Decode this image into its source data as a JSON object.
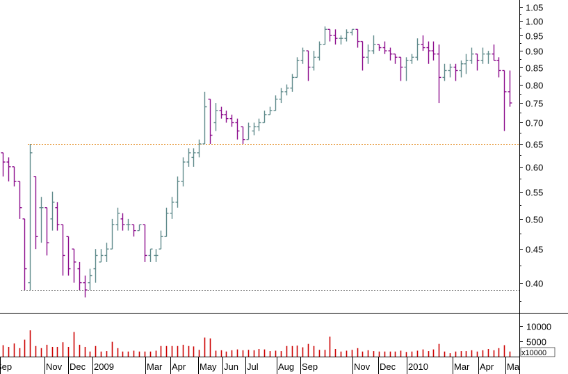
{
  "chart_data": {
    "type": "ohlc",
    "price_axis": {
      "ticks": [
        "1.05",
        "1.00",
        "0.95",
        "0.90",
        "0.85",
        "0.80",
        "0.75",
        "0.70",
        "0.65",
        "0.60",
        "0.55",
        "0.50",
        "0.45",
        "0.40"
      ],
      "tick_values": [
        1.05,
        1.0,
        0.95,
        0.9,
        0.85,
        0.8,
        0.75,
        0.7,
        0.65,
        0.6,
        0.55,
        0.5,
        0.45,
        0.4
      ],
      "scale": "log",
      "range": [
        0.36,
        1.075
      ]
    },
    "volume_axis": {
      "ticks": [
        "10000",
        "5000"
      ],
      "tick_values": [
        10000,
        5000
      ],
      "multiplier_label": "x10000",
      "range": [
        0,
        14000
      ]
    },
    "x_axis": {
      "labels": [
        "Sep",
        "Nov",
        "Dec",
        "2009",
        "Mar",
        "Apr",
        "May",
        "Jun",
        "Jul",
        "Aug",
        "Sep",
        "Nov",
        "Dec",
        "2010",
        "Mar",
        "Apr",
        "Ma"
      ]
    },
    "reference_lines": [
      {
        "value": 0.65,
        "color": "#e07b00"
      },
      {
        "value": 0.39,
        "color": "#555555"
      }
    ],
    "colors": {
      "up": "#5f8a8b",
      "down": "#8b0a8b",
      "volume": "#cc0000",
      "grid": "#000000"
    },
    "bars": [
      [
        0.63,
        0.63,
        0.58,
        0.61
      ],
      [
        0.61,
        0.62,
        0.57,
        0.6
      ],
      [
        0.6,
        0.6,
        0.56,
        0.57
      ],
      [
        0.57,
        0.57,
        0.5,
        0.52
      ],
      [
        0.5,
        0.5,
        0.39,
        0.42
      ],
      [
        0.4,
        0.65,
        0.39,
        0.63
      ],
      [
        0.58,
        0.58,
        0.45,
        0.47
      ],
      [
        0.52,
        0.54,
        0.46,
        0.52
      ],
      [
        0.52,
        0.52,
        0.44,
        0.46
      ],
      [
        0.5,
        0.55,
        0.48,
        0.53
      ],
      [
        0.52,
        0.53,
        0.48,
        0.49
      ],
      [
        0.49,
        0.49,
        0.41,
        0.44
      ],
      [
        0.47,
        0.47,
        0.41,
        0.42
      ],
      [
        0.45,
        0.45,
        0.4,
        0.43
      ],
      [
        0.42,
        0.43,
        0.39,
        0.4
      ],
      [
        0.4,
        0.41,
        0.38,
        0.39
      ],
      [
        0.4,
        0.42,
        0.39,
        0.41
      ],
      [
        0.42,
        0.45,
        0.4,
        0.44
      ],
      [
        0.43,
        0.45,
        0.43,
        0.44
      ],
      [
        0.44,
        0.46,
        0.43,
        0.45
      ],
      [
        0.45,
        0.5,
        0.45,
        0.49
      ],
      [
        0.49,
        0.52,
        0.48,
        0.51
      ],
      [
        0.5,
        0.51,
        0.48,
        0.49
      ],
      [
        0.49,
        0.5,
        0.48,
        0.49
      ],
      [
        0.49,
        0.49,
        0.47,
        0.48
      ],
      [
        0.48,
        0.49,
        0.48,
        0.49
      ],
      [
        0.49,
        0.49,
        0.43,
        0.44
      ],
      [
        0.44,
        0.45,
        0.43,
        0.45
      ],
      [
        0.44,
        0.45,
        0.43,
        0.44
      ],
      [
        0.45,
        0.48,
        0.45,
        0.47
      ],
      [
        0.47,
        0.52,
        0.47,
        0.51
      ],
      [
        0.51,
        0.54,
        0.5,
        0.53
      ],
      [
        0.53,
        0.58,
        0.52,
        0.57
      ],
      [
        0.57,
        0.62,
        0.56,
        0.61
      ],
      [
        0.61,
        0.64,
        0.6,
        0.63
      ],
      [
        0.62,
        0.64,
        0.6,
        0.63
      ],
      [
        0.63,
        0.66,
        0.62,
        0.65
      ],
      [
        0.65,
        0.78,
        0.65,
        0.74
      ],
      [
        0.76,
        0.76,
        0.65,
        0.67
      ],
      [
        0.7,
        0.75,
        0.68,
        0.73
      ],
      [
        0.73,
        0.74,
        0.71,
        0.72
      ],
      [
        0.72,
        0.73,
        0.7,
        0.71
      ],
      [
        0.71,
        0.72,
        0.69,
        0.7
      ],
      [
        0.7,
        0.71,
        0.66,
        0.68
      ],
      [
        0.69,
        0.69,
        0.65,
        0.66
      ],
      [
        0.66,
        0.7,
        0.66,
        0.69
      ],
      [
        0.68,
        0.7,
        0.67,
        0.69
      ],
      [
        0.69,
        0.71,
        0.68,
        0.7
      ],
      [
        0.7,
        0.73,
        0.7,
        0.72
      ],
      [
        0.72,
        0.74,
        0.72,
        0.73
      ],
      [
        0.73,
        0.77,
        0.73,
        0.76
      ],
      [
        0.76,
        0.79,
        0.75,
        0.78
      ],
      [
        0.78,
        0.8,
        0.77,
        0.79
      ],
      [
        0.79,
        0.83,
        0.78,
        0.82
      ],
      [
        0.82,
        0.88,
        0.82,
        0.87
      ],
      [
        0.87,
        0.91,
        0.86,
        0.9
      ],
      [
        0.9,
        0.9,
        0.81,
        0.85
      ],
      [
        0.85,
        0.9,
        0.84,
        0.88
      ],
      [
        0.88,
        0.93,
        0.87,
        0.92
      ],
      [
        0.92,
        0.98,
        0.92,
        0.97
      ],
      [
        0.97,
        0.97,
        0.93,
        0.95
      ],
      [
        0.95,
        0.97,
        0.92,
        0.94
      ],
      [
        0.94,
        0.95,
        0.92,
        0.94
      ],
      [
        0.94,
        0.97,
        0.93,
        0.96
      ],
      [
        0.96,
        0.97,
        0.95,
        0.97
      ],
      [
        0.97,
        0.97,
        0.91,
        0.93
      ],
      [
        0.93,
        0.93,
        0.84,
        0.88
      ],
      [
        0.88,
        0.92,
        0.86,
        0.9
      ],
      [
        0.9,
        0.95,
        0.89,
        0.92
      ],
      [
        0.92,
        0.92,
        0.9,
        0.91
      ],
      [
        0.91,
        0.93,
        0.89,
        0.9
      ],
      [
        0.9,
        0.91,
        0.87,
        0.89
      ],
      [
        0.89,
        0.89,
        0.86,
        0.88
      ],
      [
        0.88,
        0.88,
        0.81,
        0.85
      ],
      [
        0.85,
        0.88,
        0.81,
        0.87
      ],
      [
        0.87,
        0.89,
        0.86,
        0.88
      ],
      [
        0.88,
        0.94,
        0.87,
        0.92
      ],
      [
        0.92,
        0.95,
        0.9,
        0.91
      ],
      [
        0.91,
        0.93,
        0.86,
        0.9
      ],
      [
        0.9,
        0.93,
        0.87,
        0.89
      ],
      [
        0.89,
        0.92,
        0.75,
        0.82
      ],
      [
        0.82,
        0.86,
        0.81,
        0.84
      ],
      [
        0.84,
        0.86,
        0.82,
        0.85
      ],
      [
        0.85,
        0.86,
        0.81,
        0.84
      ],
      [
        0.84,
        0.87,
        0.82,
        0.86
      ],
      [
        0.86,
        0.89,
        0.83,
        0.87
      ],
      [
        0.87,
        0.91,
        0.86,
        0.89
      ],
      [
        0.89,
        0.89,
        0.84,
        0.87
      ],
      [
        0.87,
        0.91,
        0.86,
        0.89
      ],
      [
        0.89,
        0.9,
        0.86,
        0.89
      ],
      [
        0.89,
        0.92,
        0.87,
        0.87
      ],
      [
        0.87,
        0.88,
        0.82,
        0.84
      ],
      [
        0.84,
        0.84,
        0.68,
        0.78
      ],
      [
        0.78,
        0.84,
        0.74,
        0.75
      ]
    ],
    "volume": [
      0.27,
      0.23,
      0.31,
      0.2,
      0.4,
      0.62,
      0.25,
      0.2,
      0.28,
      0.23,
      0.23,
      0.34,
      0.23,
      0.58,
      0.28,
      0.23,
      0.12,
      0.25,
      0.12,
      0.13,
      0.35,
      0.2,
      0.12,
      0.12,
      0.14,
      0.12,
      0.12,
      0.12,
      0.14,
      0.25,
      0.25,
      0.25,
      0.25,
      0.28,
      0.25,
      0.24,
      0.16,
      0.45,
      0.43,
      0.14,
      0.15,
      0.12,
      0.15,
      0.17,
      0.15,
      0.16,
      0.15,
      0.18,
      0.17,
      0.13,
      0.14,
      0.13,
      0.25,
      0.25,
      0.26,
      0.22,
      0.3,
      0.25,
      0.16,
      0.16,
      0.47,
      0.18,
      0.12,
      0.14,
      0.16,
      0.2,
      0.12,
      0.15,
      0.13,
      0.12,
      0.12,
      0.12,
      0.12,
      0.14,
      0.11,
      0.12,
      0.14,
      0.17,
      0.13,
      0.17,
      0.3,
      0.12,
      0.08,
      0.12,
      0.13,
      0.13,
      0.15,
      0.12,
      0.15,
      0.18,
      0.15,
      0.2,
      0.27,
      0.12
    ]
  }
}
